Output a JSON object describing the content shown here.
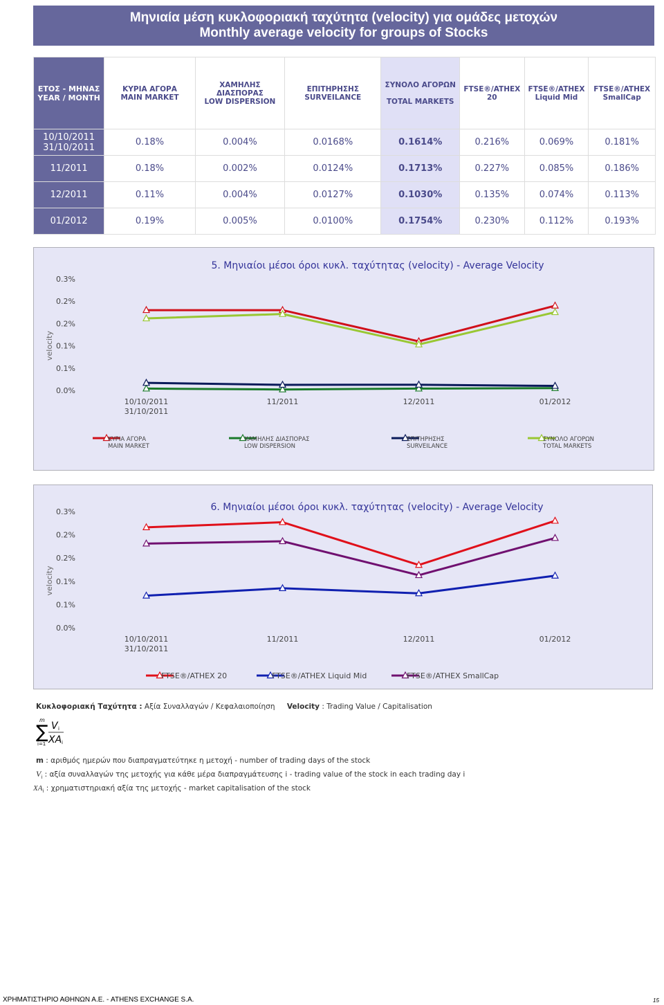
{
  "header": {
    "title_gr": "Μηνιαία μέση κυκλοφοριακή ταχύτητα (velocity) για ομάδες μετοχών",
    "title_en": "Monthly average velocity for groups of Stocks"
  },
  "table": {
    "headers": [
      "ΕΤΟΣ - ΜΗΝΑΣ\nYEAR / MONTH",
      "ΚΥΡΙΑ ΑΓΟΡΑ\nMAIN MARKET",
      "ΧΑΜΗΛΗΣ ΔΙΑΣΠΟΡΑΣ\nLOW DISPERSION",
      "ΕΠΙΤΗΡΗΣΗΣ\nSURVEILANCE",
      "ΣΥΝΟΛΟ ΑΓΟΡΩΝ\n\nTOTAL MARKETS",
      "FTSE®/ATHEX\n20",
      "FTSE®/ATHEX\nLiquid Mid",
      "FTSE®/ATHEX\nSmallCap"
    ],
    "rows": [
      [
        "10/10/2011\n31/10/2011",
        "0.18%",
        "0.004%",
        "0.0168%",
        "0.1614%",
        "0.216%",
        "0.069%",
        "0.181%"
      ],
      [
        "11/2011",
        "0.18%",
        "0.002%",
        "0.0124%",
        "0.1713%",
        "0.227%",
        "0.085%",
        "0.186%"
      ],
      [
        "12/2011",
        "0.11%",
        "0.004%",
        "0.0127%",
        "0.1030%",
        "0.135%",
        "0.074%",
        "0.113%"
      ],
      [
        "01/2012",
        "0.19%",
        "0.005%",
        "0.0100%",
        "0.1754%",
        "0.230%",
        "0.112%",
        "0.193%"
      ]
    ]
  },
  "chart_data": [
    {
      "type": "line",
      "title": "5. Μηνιαίοι μέσοι όροι κυκλ. ταχύτητας (velocity) - Average Velocity",
      "y_label": "velocity",
      "categories": [
        "10/10/2011\n31/10/2011",
        "11/2011",
        "12/2011",
        "01/2012"
      ],
      "ylim": [
        0,
        0.25
      ],
      "yticks": [
        {
          "value": 0,
          "label": "0.0%"
        },
        {
          "value": 0.05,
          "label": "0.1%"
        },
        {
          "value": 0.1,
          "label": "0.1%"
        },
        {
          "value": 0.15,
          "label": "0.2%"
        },
        {
          "value": 0.2,
          "label": "0.2%"
        },
        {
          "value": 0.25,
          "label": "0.3%"
        }
      ],
      "grid": false,
      "series": [
        {
          "name": "ΚΥΡΙΑ ΑΓΟΡΑ\nMAIN MARKET",
          "color": "#d0101a",
          "values": [
            0.18,
            0.18,
            0.11,
            0.19
          ]
        },
        {
          "name": "ΧΑΜΗΛΗΣ ΔΙΑΣΠΟΡΑΣ\nLOW DISPERSION",
          "color": "#1a7a2a",
          "values": [
            0.004,
            0.002,
            0.004,
            0.005
          ]
        },
        {
          "name": "ΕΠΙΤΗΡΗΣΗΣ\nSURVEILANCE",
          "color": "#0a1a5a",
          "values": [
            0.0168,
            0.0124,
            0.0127,
            0.01
          ]
        },
        {
          "name": "ΣΥΝΟΛΟ ΑΓΟΡΩΝ\n\nTOTAL MARKETS",
          "color": "#99c733",
          "values": [
            0.1614,
            0.1713,
            0.103,
            0.1754
          ]
        }
      ]
    },
    {
      "type": "line",
      "title": "6. Μηνιαίοι μέσοι όροι κυκλ. ταχύτητας (velocity) - Average Velocity",
      "y_label": "velocity",
      "categories": [
        "10/10/2011\n31/10/2011",
        "11/2011",
        "12/2011",
        "01/2012"
      ],
      "ylim": [
        0,
        0.25
      ],
      "yticks": [
        {
          "value": 0,
          "label": "0.0%"
        },
        {
          "value": 0.05,
          "label": "0.1%"
        },
        {
          "value": 0.1,
          "label": "0.1%"
        },
        {
          "value": 0.15,
          "label": "0.2%"
        },
        {
          "value": 0.2,
          "label": "0.2%"
        },
        {
          "value": 0.25,
          "label": "0.3%"
        }
      ],
      "grid": false,
      "series": [
        {
          "name": "FTSE®/ATHEX 20",
          "color": "#e0101a",
          "values": [
            0.216,
            0.227,
            0.135,
            0.23
          ]
        },
        {
          "name": "FTSE®/ATHEX Liquid Mid",
          "color": "#1020b0",
          "values": [
            0.069,
            0.085,
            0.074,
            0.112
          ]
        },
        {
          "name": "FTSE®/ATHEX SmallCap",
          "color": "#701070",
          "values": [
            0.181,
            0.186,
            0.113,
            0.193
          ]
        }
      ]
    }
  ],
  "notes": {
    "gr_label": "Κυκλοφοριακή Ταχύτητα :",
    "gr_text": "Αξία Συναλλαγών / Κεφαλαιοποίηση",
    "en_label": "Velocity",
    "en_text": ": Trading Value / Capitalisation",
    "formula": {
      "upper": "m",
      "lower": "i=1",
      "num": "V",
      "den": "XA",
      "sub": "i"
    },
    "m_sym": "m",
    "m_text": ": αριθμός ημερών που διαπραγματεύτηκε η μετοχή - number of trading days of the stock",
    "v_sym": "V",
    "v_sub": "i",
    "v_text": ": αξία συναλλαγών της μετοχής για κάθε μέρα διαπραγμάτευσης i - trading value of the stock in each trading day i",
    "xa_sym": "XA",
    "xa_sub": "i",
    "xa_text": ": χρηματιστηριακή αξία της μετοχής - market capitalisation of the stock"
  },
  "footer": {
    "company": "ΧΡΗΜΑΤΙΣΤΗΡΙΟ ΑΘΗΝΩΝ Α.Ε. - ATHENS EXCHANGE S.A.",
    "page": 15
  }
}
